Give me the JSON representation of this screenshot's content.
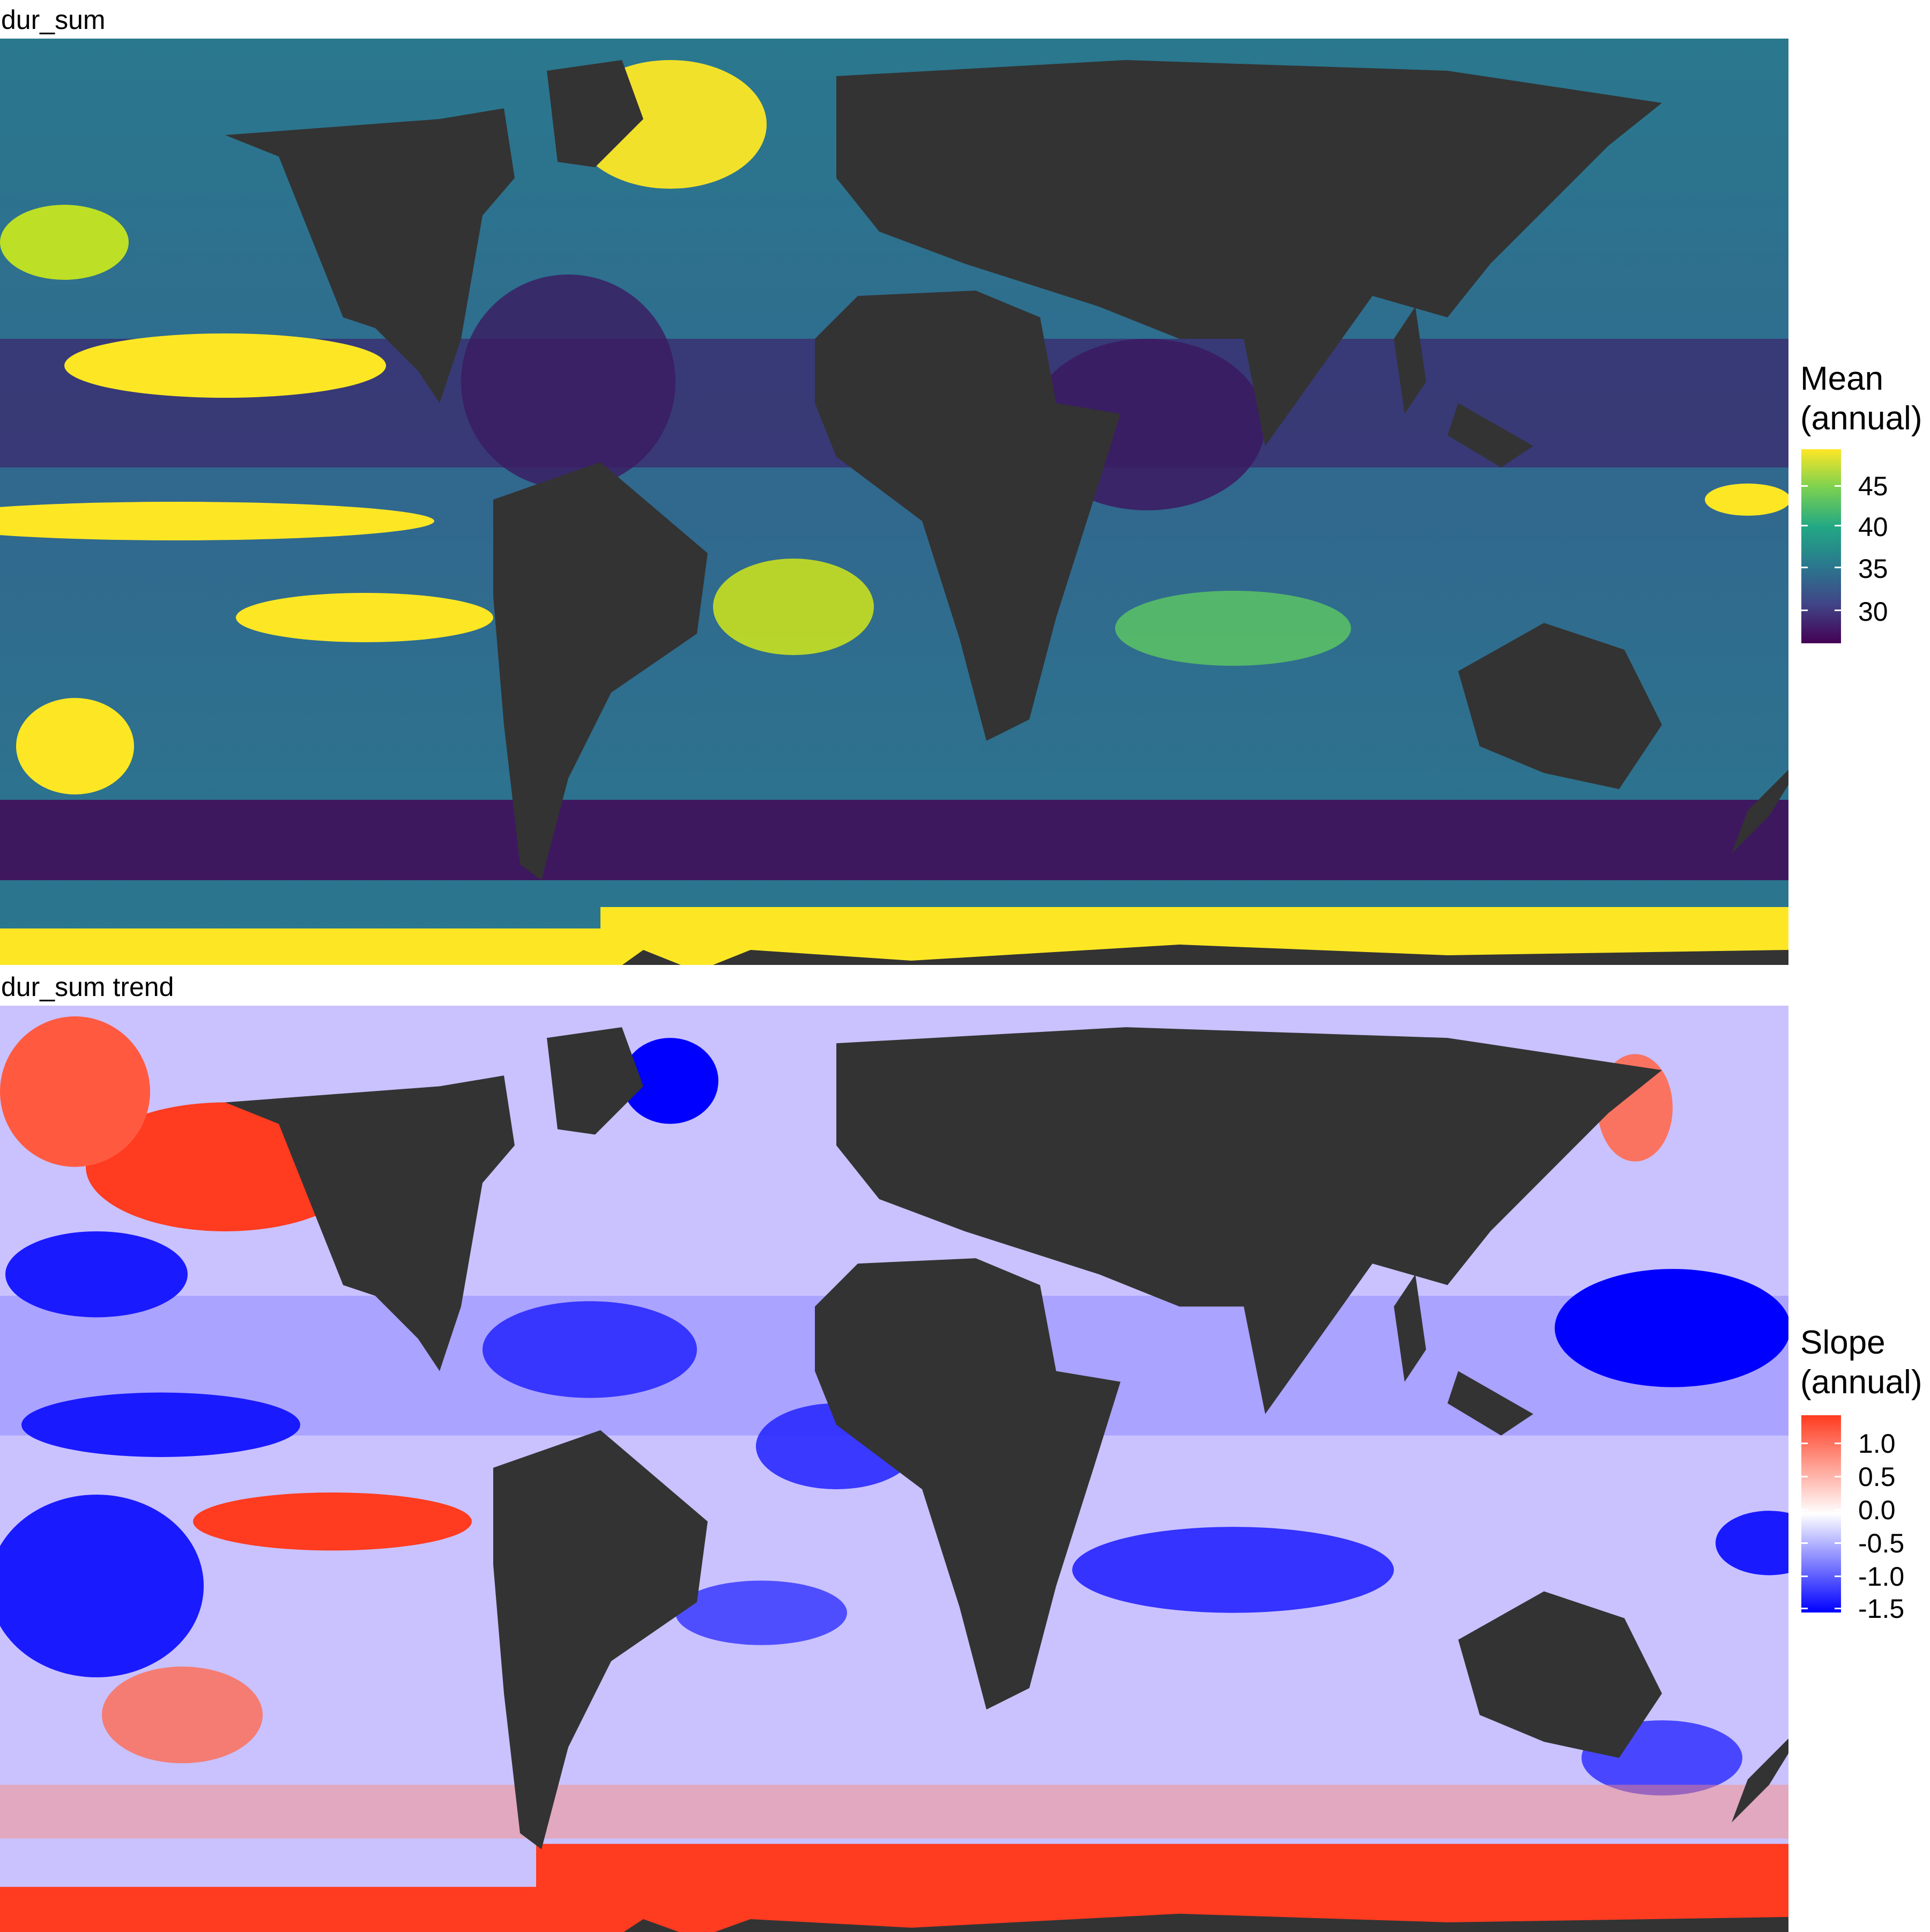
{
  "panels": [
    {
      "title": "dur_sum",
      "legend": {
        "title_line1": "Mean",
        "title_line2": "(annual)",
        "ticks": [
          "45",
          "40",
          "35",
          "30"
        ],
        "colors": [
          "#fde725",
          "#7ad151",
          "#22a884",
          "#2a788e",
          "#414487",
          "#440154"
        ]
      },
      "palette": {
        "land": "#333333"
      }
    },
    {
      "title": "dur_sum trend",
      "legend": {
        "title_line1": "Slope",
        "title_line2": "(annual)",
        "ticks": [
          "1.0",
          "0.5",
          "0.0",
          "-0.5",
          "-1.0",
          "-1.5"
        ],
        "colors": [
          "#ff3b20",
          "#ffffff",
          "#0000ff"
        ]
      },
      "palette": {
        "land": "#333333"
      }
    }
  ]
}
